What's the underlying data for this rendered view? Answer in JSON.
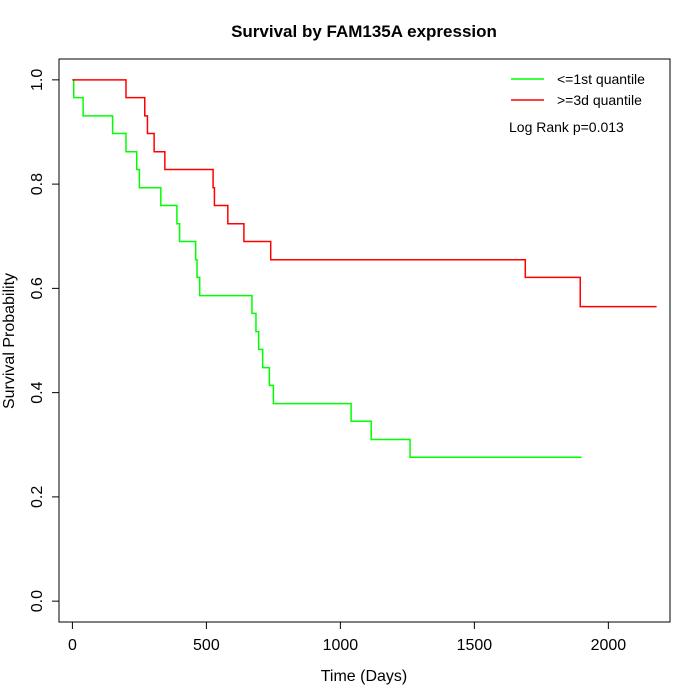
{
  "chart_data": {
    "type": "line",
    "title": "Survival by FAM135A expression",
    "xlabel": "Time (Days)",
    "ylabel": "Survival Probability",
    "xlim": [
      -50,
      2230
    ],
    "ylim": [
      -0.04,
      1.04
    ],
    "x_ticks": [
      0,
      500,
      1000,
      1500,
      2000
    ],
    "y_ticks": [
      0.0,
      0.2,
      0.4,
      0.6,
      0.8,
      1.0
    ],
    "x_tick_labels": [
      "0",
      "500",
      "1000",
      "1500",
      "2000"
    ],
    "y_tick_labels": [
      "0.0",
      "0.2",
      "0.4",
      "0.6",
      "0.8",
      "1.0"
    ],
    "grid": false,
    "legend_position": "top-right",
    "annotation": "Log Rank p=0.013",
    "series": [
      {
        "name": "<=1st quantile",
        "color": "#00ff00",
        "x": [
          0,
          5,
          40,
          150,
          200,
          240,
          250,
          330,
          390,
          400,
          460,
          465,
          475,
          670,
          685,
          695,
          710,
          735,
          750,
          770,
          1040,
          1115,
          1260,
          1900
        ],
        "y": [
          1.0,
          0.966,
          0.931,
          0.897,
          0.862,
          0.828,
          0.793,
          0.759,
          0.724,
          0.69,
          0.655,
          0.621,
          0.586,
          0.552,
          0.517,
          0.483,
          0.448,
          0.414,
          0.379,
          0.379,
          0.345,
          0.31,
          0.276,
          0.276
        ]
      },
      {
        "name": ">=3d quantile",
        "color": "#ff0000",
        "x": [
          0,
          200,
          270,
          280,
          305,
          345,
          525,
          530,
          580,
          640,
          740,
          1690,
          1895,
          2180
        ],
        "y": [
          1.0,
          0.966,
          0.931,
          0.897,
          0.862,
          0.828,
          0.793,
          0.759,
          0.724,
          0.69,
          0.655,
          0.621,
          0.565,
          0.565
        ]
      }
    ]
  }
}
